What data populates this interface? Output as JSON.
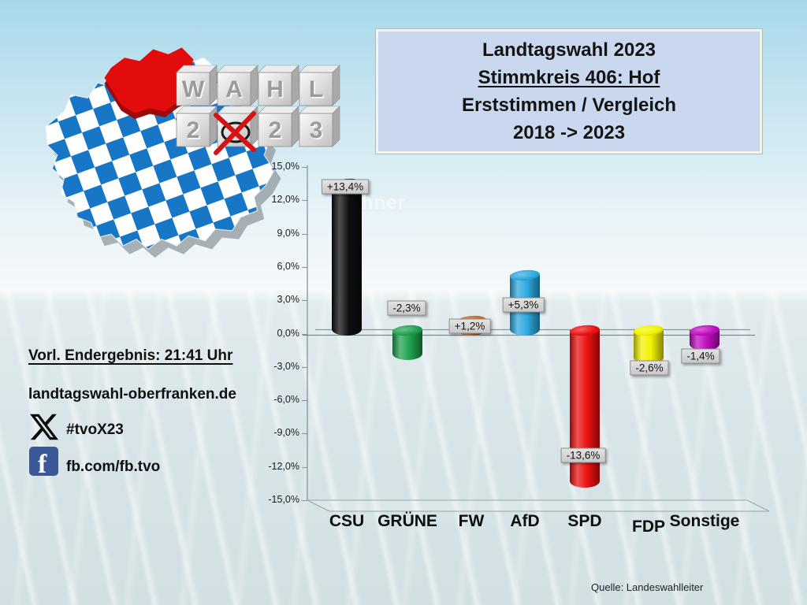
{
  "header": {
    "line1": "Landtagswahl 2023",
    "line2": "Stimmkreis 406: Hof",
    "line3": "Erststimmen / Vergleich",
    "line4": "2018 -> 2023"
  },
  "info": {
    "result_time": "Vorl. Endergebnis: 21:41 Uhr",
    "website": "landtagswahl-oberfranken.de",
    "x_hashtag": "#tvoX23",
    "facebook_handle": "fb.com/fb.tvo",
    "facebook_letter": "f"
  },
  "wahl_blocks": {
    "top_row": [
      "W",
      "A",
      "H",
      "L"
    ],
    "bottom_row": [
      "2",
      "0",
      "2",
      "3"
    ],
    "crossed_index": 1
  },
  "map": {
    "name": "bavaria-map-oberfranken-highlighted",
    "highlight_color": "#e30c0c",
    "pattern_blue": "#1876c6"
  },
  "watermark": {
    "text": "hner"
  },
  "source": "Quelle: Landeswahlleiter",
  "chart_data": {
    "type": "bar",
    "title": "Erststimmen / Vergleich 2018 -> 2023",
    "categories": [
      "CSU",
      "GRÜNE",
      "FW",
      "AfD",
      "SPD",
      "FDP",
      "Sonstige"
    ],
    "values": [
      13.4,
      -2.3,
      1.2,
      5.3,
      -13.6,
      -2.6,
      -1.4
    ],
    "value_labels": [
      "+13,4%",
      "-2,3%",
      "+1,2%",
      "+5,3%",
      "-13,6%",
      "-2,6%",
      "-1,4%"
    ],
    "colors": [
      "#0d0d0d",
      "#1fa24e",
      "#cd661a",
      "#2ea9e1",
      "#ee1111",
      "#f2f200",
      "#c00ec0"
    ],
    "ylim": [
      -15,
      15
    ],
    "ytick_step": 3,
    "yticks": [
      "15,0%",
      "12,0%",
      "9,0%",
      "6,0%",
      "3,0%",
      "0,0%",
      "-3,0%",
      "-6,0%",
      "-9,0%",
      "-12,0%",
      "-15,0%"
    ],
    "grid": false,
    "legend": false,
    "style": "3d-cylinder"
  }
}
